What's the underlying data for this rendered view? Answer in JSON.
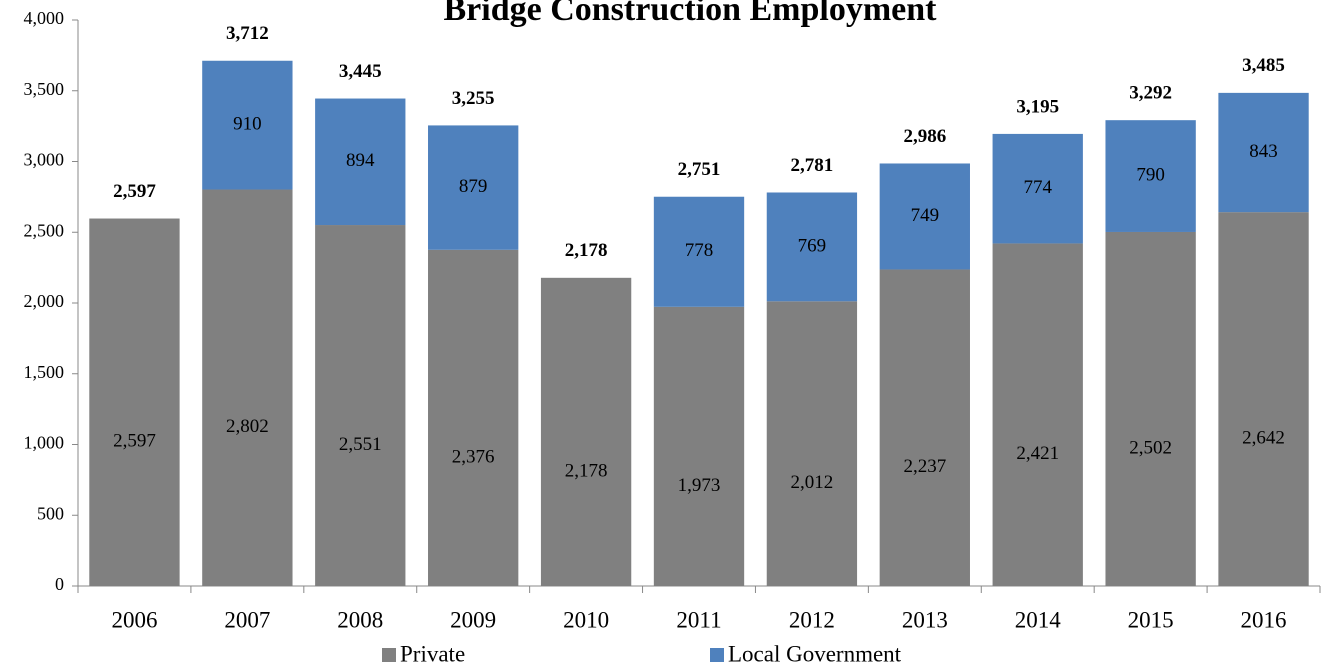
{
  "chart_data": {
    "type": "bar",
    "stacked": true,
    "title": "Bridge Construction Employment",
    "categories": [
      "2006",
      "2007",
      "2008",
      "2009",
      "2010",
      "2011",
      "2012",
      "2013",
      "2014",
      "2015",
      "2016"
    ],
    "series": [
      {
        "name": "Private",
        "color": "#808080",
        "values": [
          2597,
          2802,
          2551,
          2376,
          2178,
          1973,
          2012,
          2237,
          2421,
          2502,
          2642
        ],
        "value_labels": [
          "2,597",
          "2,802",
          "2,551",
          "2,376",
          "2,178",
          "1,973",
          "2,012",
          "2,237",
          "2,421",
          "2,502",
          "2,642"
        ]
      },
      {
        "name": "Local Government",
        "color": "#4f81bd",
        "values": [
          null,
          910,
          894,
          879,
          null,
          778,
          769,
          749,
          774,
          790,
          843
        ]
      }
    ],
    "totals": [
      2597,
      3712,
      3445,
      3255,
      2178,
      2751,
      2781,
      2986,
      3195,
      3292,
      3485
    ],
    "total_labels": [
      "2,597",
      "3,712",
      "3,445",
      "3,255",
      "2,178",
      "2,751",
      "2,781",
      "2,986",
      "3,195",
      "3,292",
      "3,485"
    ],
    "ylim": [
      0,
      4000
    ],
    "yticks": [
      0,
      500,
      {
        "value": 1000,
        "label": "1,000"
      },
      {
        "value": 1500,
        "label": "1,500"
      },
      {
        "value": 2000,
        "label": "2,000"
      },
      {
        "value": 2500,
        "label": "2,500"
      },
      {
        "value": 3000,
        "label": "3,000"
      },
      {
        "value": 3500,
        "label": "3,500"
      },
      {
        "value": 4000,
        "label": "4,000"
      }
    ],
    "grid": false,
    "legend": "bottom"
  }
}
